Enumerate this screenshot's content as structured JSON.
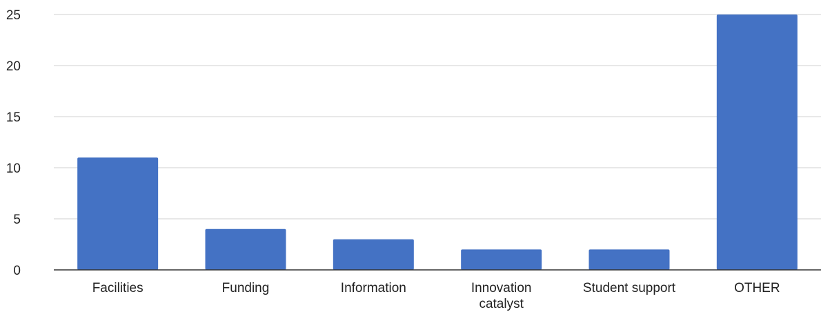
{
  "chart_data": {
    "type": "bar",
    "title": "",
    "xlabel": "",
    "ylabel": "",
    "categories": [
      [
        "Facilities"
      ],
      [
        "Funding"
      ],
      [
        "Information"
      ],
      [
        "Innovation",
        "catalyst"
      ],
      [
        "Student support"
      ],
      [
        "OTHER"
      ]
    ],
    "values": [
      11,
      4,
      3,
      2,
      2,
      25
    ],
    "ylim": [
      0,
      25
    ],
    "yticks": [
      0,
      5,
      10,
      15,
      20,
      25
    ],
    "grid": true,
    "legend": "none",
    "colors": {
      "bar": "#4472C4",
      "grid": "#D0D0D0",
      "axis": "#333333"
    }
  }
}
